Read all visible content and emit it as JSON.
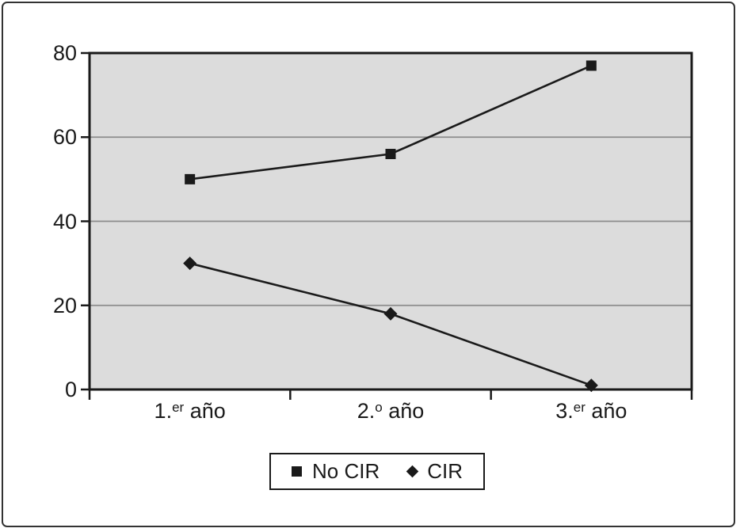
{
  "frame": {
    "background": "#ffffff",
    "border_color": "#333333"
  },
  "chart_data": {
    "type": "line",
    "title": "",
    "categories": [
      "1.er año",
      "2.º año",
      "3.er año"
    ],
    "categories_rich": [
      {
        "pre": "1.",
        "sup": "er",
        "post": " año"
      },
      {
        "pre": "2.",
        "sup": "o",
        "post": " año"
      },
      {
        "pre": "3.",
        "sup": "er",
        "post": " año"
      }
    ],
    "series": [
      {
        "name": "No CIR",
        "marker": "square",
        "values": [
          50,
          56,
          77
        ]
      },
      {
        "name": "CIR",
        "marker": "diamond",
        "values": [
          30,
          18,
          1
        ]
      }
    ],
    "ylim": [
      0,
      80
    ],
    "yticks": [
      0,
      20,
      40,
      60,
      80
    ],
    "grid": true,
    "legend_position": "bottom-center",
    "colors": {
      "plot_background": "#dcdcdc",
      "gridline": "#8c8c8c",
      "line": "#1a1a1a",
      "axis": "#1a1a1a",
      "text": "#1a1a1a"
    }
  }
}
